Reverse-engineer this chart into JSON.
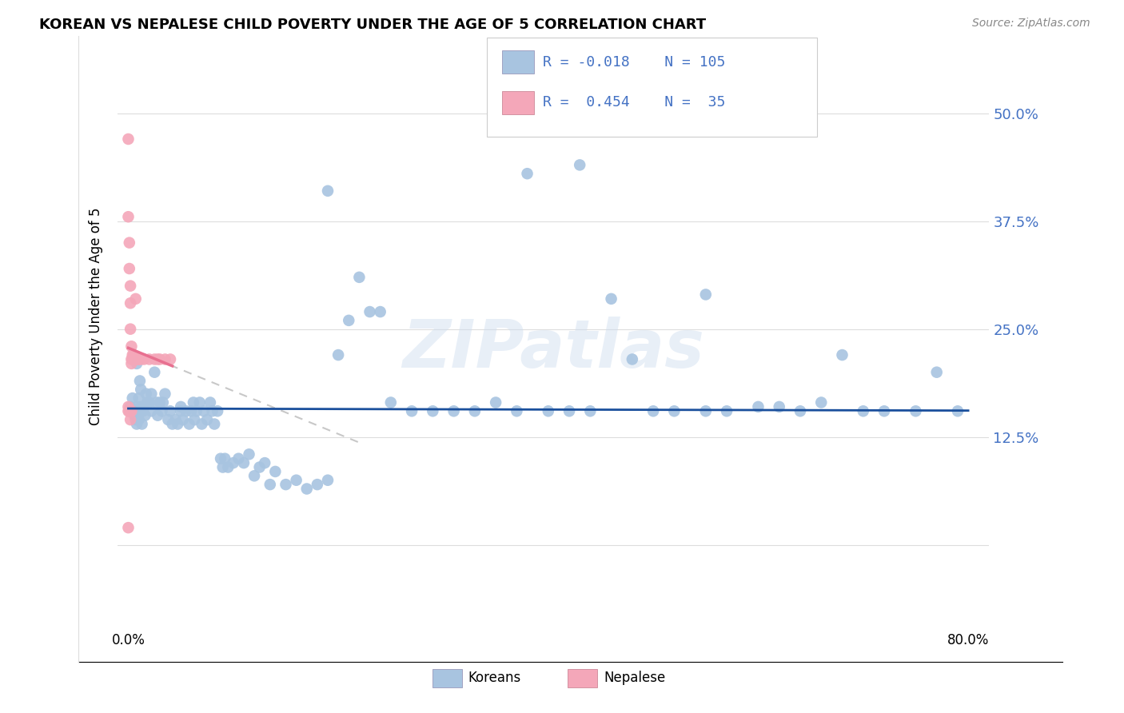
{
  "title": "KOREAN VS NEPALESE CHILD POVERTY UNDER THE AGE OF 5 CORRELATION CHART",
  "source": "Source: ZipAtlas.com",
  "ylabel": "Child Poverty Under the Age of 5",
  "watermark": "ZIPatlas",
  "legend_R_korean": "-0.018",
  "legend_N_korean": "105",
  "legend_R_nepalese": "0.454",
  "legend_N_nepalese": "35",
  "korean_color": "#a8c4e0",
  "nepalese_color": "#f4a7b9",
  "trend_korean_color": "#1a4f9c",
  "trend_nepalese_color": "#e87090",
  "trend_nepalese_dashed_color": "#c8c8c8",
  "ytick_positions": [
    0.0,
    0.125,
    0.25,
    0.375,
    0.5
  ],
  "ytick_labels": [
    "",
    "12.5%",
    "25.0%",
    "37.5%",
    "50.0%"
  ],
  "xlim": [
    -0.01,
    0.82
  ],
  "ylim": [
    -0.05,
    0.58
  ],
  "korean_x": [
    0.002,
    0.004,
    0.005,
    0.006,
    0.007,
    0.008,
    0.008,
    0.009,
    0.01,
    0.01,
    0.011,
    0.011,
    0.012,
    0.012,
    0.013,
    0.014,
    0.015,
    0.016,
    0.017,
    0.018,
    0.02,
    0.022,
    0.022,
    0.025,
    0.027,
    0.028,
    0.03,
    0.032,
    0.033,
    0.035,
    0.038,
    0.04,
    0.042,
    0.045,
    0.047,
    0.05,
    0.05,
    0.052,
    0.055,
    0.058,
    0.06,
    0.062,
    0.063,
    0.065,
    0.068,
    0.07,
    0.072,
    0.075,
    0.078,
    0.08,
    0.082,
    0.085,
    0.088,
    0.09,
    0.092,
    0.095,
    0.1,
    0.105,
    0.11,
    0.115,
    0.12,
    0.125,
    0.13,
    0.135,
    0.14,
    0.15,
    0.16,
    0.17,
    0.18,
    0.19,
    0.2,
    0.21,
    0.22,
    0.23,
    0.24,
    0.25,
    0.27,
    0.29,
    0.31,
    0.33,
    0.35,
    0.37,
    0.4,
    0.42,
    0.44,
    0.46,
    0.48,
    0.5,
    0.52,
    0.55,
    0.57,
    0.6,
    0.62,
    0.64,
    0.66,
    0.68,
    0.7,
    0.72,
    0.75,
    0.77,
    0.79,
    0.38,
    0.19,
    0.43,
    0.55
  ],
  "korean_y": [
    0.16,
    0.17,
    0.155,
    0.15,
    0.145,
    0.14,
    0.21,
    0.16,
    0.17,
    0.145,
    0.155,
    0.19,
    0.16,
    0.18,
    0.14,
    0.155,
    0.16,
    0.15,
    0.175,
    0.165,
    0.165,
    0.175,
    0.155,
    0.2,
    0.165,
    0.15,
    0.165,
    0.155,
    0.165,
    0.175,
    0.145,
    0.155,
    0.14,
    0.145,
    0.14,
    0.16,
    0.155,
    0.145,
    0.155,
    0.14,
    0.155,
    0.165,
    0.145,
    0.155,
    0.165,
    0.14,
    0.155,
    0.145,
    0.165,
    0.155,
    0.14,
    0.155,
    0.1,
    0.09,
    0.1,
    0.09,
    0.095,
    0.1,
    0.095,
    0.105,
    0.08,
    0.09,
    0.095,
    0.07,
    0.085,
    0.07,
    0.075,
    0.065,
    0.07,
    0.075,
    0.22,
    0.26,
    0.31,
    0.27,
    0.27,
    0.165,
    0.155,
    0.155,
    0.155,
    0.155,
    0.165,
    0.155,
    0.155,
    0.155,
    0.155,
    0.285,
    0.215,
    0.155,
    0.155,
    0.155,
    0.155,
    0.16,
    0.16,
    0.155,
    0.165,
    0.22,
    0.155,
    0.155,
    0.155,
    0.2,
    0.155,
    0.43,
    0.41,
    0.44,
    0.29
  ],
  "nepalese_x": [
    0.0,
    0.0,
    0.0,
    0.001,
    0.001,
    0.002,
    0.002,
    0.002,
    0.003,
    0.003,
    0.003,
    0.004,
    0.004,
    0.005,
    0.005,
    0.006,
    0.007,
    0.008,
    0.009,
    0.01,
    0.012,
    0.015,
    0.02,
    0.025,
    0.028,
    0.03,
    0.035,
    0.04,
    0.0,
    0.001,
    0.0,
    0.001,
    0.002,
    0.002,
    0.003
  ],
  "nepalese_y": [
    0.47,
    0.38,
    0.02,
    0.35,
    0.32,
    0.3,
    0.28,
    0.25,
    0.23,
    0.215,
    0.21,
    0.22,
    0.215,
    0.22,
    0.215,
    0.215,
    0.285,
    0.215,
    0.215,
    0.215,
    0.215,
    0.215,
    0.215,
    0.215,
    0.215,
    0.215,
    0.215,
    0.215,
    0.16,
    0.155,
    0.155,
    0.155,
    0.155,
    0.145,
    0.155
  ]
}
